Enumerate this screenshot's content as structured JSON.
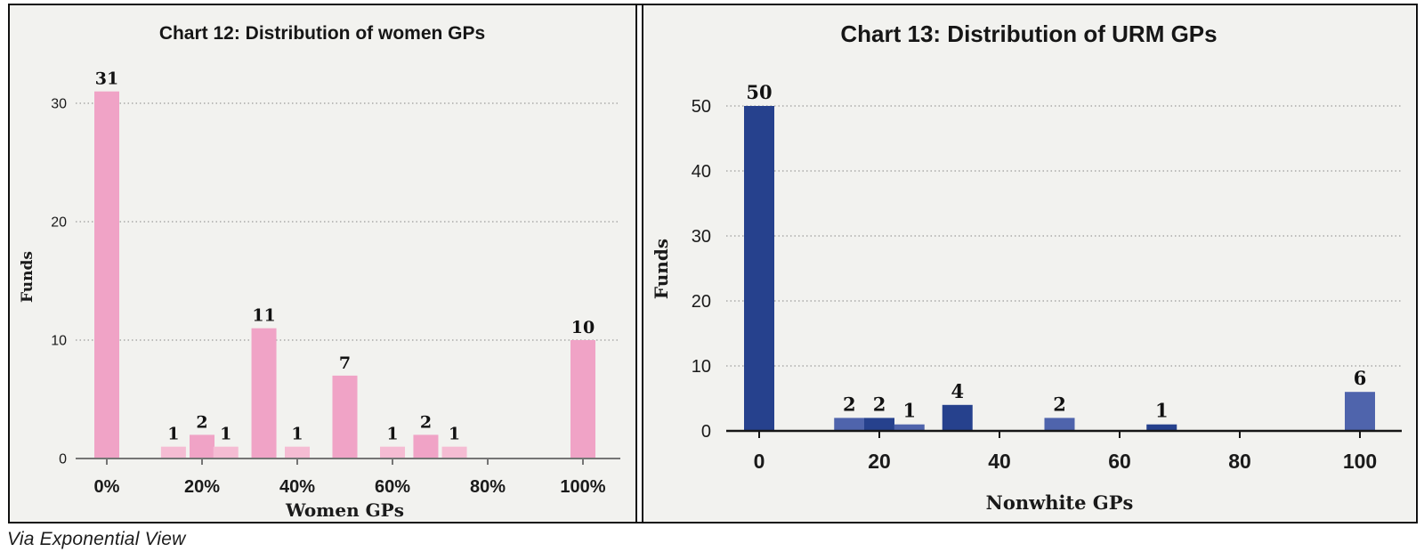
{
  "caption": "Via Exponential View",
  "palette": {
    "panel_bg": "#f2f2ef",
    "figure_border": "#111111",
    "gridline": "#9b9b9b",
    "text": "#1a1a1a"
  },
  "chart_data": [
    {
      "type": "bar",
      "title": "Chart 12: Distribution of women GPs",
      "xlabel": "Women GPs",
      "ylabel": "Funds",
      "xticks": [
        0,
        20,
        40,
        60,
        80,
        100
      ],
      "xtick_suffix": "%",
      "yticks": [
        0,
        10,
        20,
        30
      ],
      "xlim": [
        -7,
        107
      ],
      "ylim": [
        0,
        31
      ],
      "grid": "dotted-horizontal",
      "legend": null,
      "colors": {
        "dark": "#f0a3c6",
        "light": "#f5bcd3"
      },
      "bars": [
        {
          "x": 0,
          "value": 31,
          "shade": "dark"
        },
        {
          "x": 14,
          "value": 1,
          "shade": "light"
        },
        {
          "x": 20,
          "value": 2,
          "shade": "dark"
        },
        {
          "x": 25,
          "value": 1,
          "shade": "light"
        },
        {
          "x": 33,
          "value": 11,
          "shade": "dark"
        },
        {
          "x": 40,
          "value": 1,
          "shade": "light"
        },
        {
          "x": 50,
          "value": 7,
          "shade": "dark"
        },
        {
          "x": 60,
          "value": 1,
          "shade": "light"
        },
        {
          "x": 67,
          "value": 2,
          "shade": "dark"
        },
        {
          "x": 73,
          "value": 1,
          "shade": "light"
        },
        {
          "x": 100,
          "value": 10,
          "shade": "dark"
        }
      ]
    },
    {
      "type": "bar",
      "title": "Chart 13: Distribution of URM GPs",
      "xlabel": "Nonwhite GPs",
      "ylabel": "Funds",
      "xticks": [
        0,
        20,
        40,
        60,
        80,
        100
      ],
      "xtick_suffix": "",
      "yticks": [
        0,
        10,
        20,
        30,
        40,
        50
      ],
      "xlim": [
        -7,
        107
      ],
      "ylim": [
        0,
        50
      ],
      "grid": "dotted-horizontal",
      "legend": null,
      "colors": {
        "dark": "#26418d",
        "light": "#4f64ac"
      },
      "bars": [
        {
          "x": 0,
          "value": 50,
          "shade": "dark"
        },
        {
          "x": 15,
          "value": 2,
          "shade": "light"
        },
        {
          "x": 20,
          "value": 2,
          "shade": "dark"
        },
        {
          "x": 25,
          "value": 1,
          "shade": "light"
        },
        {
          "x": 33,
          "value": 4,
          "shade": "dark"
        },
        {
          "x": 50,
          "value": 2,
          "shade": "light"
        },
        {
          "x": 67,
          "value": 1,
          "shade": "dark"
        },
        {
          "x": 100,
          "value": 6,
          "shade": "light"
        }
      ]
    }
  ]
}
